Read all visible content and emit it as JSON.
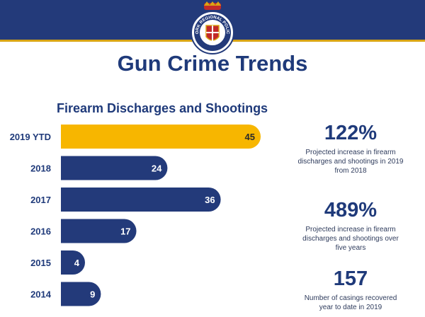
{
  "header": {
    "title": "Gun Crime Trends",
    "crest_text": "YORK REGIONAL POLICE",
    "colors": {
      "banner": "#233a7a",
      "accent": "#d9a514"
    },
    "crest_icon": "police-crest-icon"
  },
  "chart_data": {
    "type": "bar",
    "orientation": "horizontal",
    "title": "Firearm Discharges and Shootings",
    "categories": [
      "2019 YTD",
      "2018",
      "2017",
      "2016",
      "2015",
      "2014"
    ],
    "values": [
      45,
      24,
      36,
      17,
      4,
      9
    ],
    "highlight": "2019 YTD",
    "colors": {
      "default": "#233a7a",
      "highlight": "#f7b600"
    },
    "xlim": [
      0,
      45
    ],
    "grid": false,
    "legend": "none"
  },
  "stats": [
    {
      "value": "122%",
      "description": "Projected increase in firearm discharges and shootings in 2019 from 2018"
    },
    {
      "value": "489%",
      "description": "Projected increase in firearm discharges and shootings over five years"
    },
    {
      "value": "157",
      "description": "Number of casings recovered year to date in 2019"
    }
  ]
}
